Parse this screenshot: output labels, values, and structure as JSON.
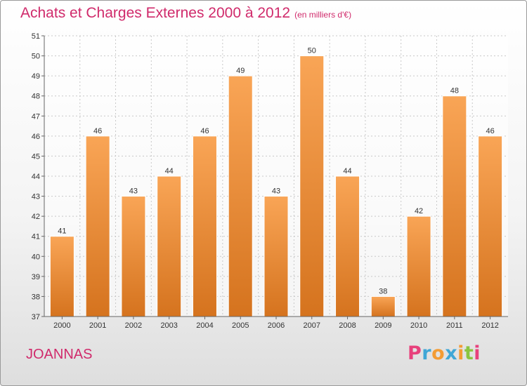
{
  "chart_data": {
    "type": "bar",
    "title": "Achats et Charges Externes 2000 à 2012",
    "subtitle": "(en milliers d'€)",
    "categories": [
      "2000",
      "2001",
      "2002",
      "2003",
      "2004",
      "2005",
      "2006",
      "2007",
      "2008",
      "2009",
      "2010",
      "2011",
      "2012"
    ],
    "values": [
      41,
      46,
      43,
      44,
      46,
      49,
      43,
      50,
      44,
      38,
      42,
      48,
      46
    ],
    "xlabel": "",
    "ylabel": "",
    "ylim": [
      37,
      51
    ],
    "yticks": [
      37,
      38,
      39,
      40,
      41,
      42,
      43,
      44,
      45,
      46,
      47,
      48,
      49,
      50,
      51
    ],
    "grid": true,
    "bar_color_top": "#f9a556",
    "bar_color_bottom": "#d5731e"
  },
  "commune": "JOANNAS",
  "logo": {
    "letters": [
      "P",
      "r",
      "o",
      "x",
      "i",
      "t",
      "i"
    ],
    "colors": [
      "#e8417c",
      "#3fa7d6",
      "#f39c34",
      "#3fa7d6",
      "#f39c34",
      "#8ac53f",
      "#e8417c"
    ]
  }
}
